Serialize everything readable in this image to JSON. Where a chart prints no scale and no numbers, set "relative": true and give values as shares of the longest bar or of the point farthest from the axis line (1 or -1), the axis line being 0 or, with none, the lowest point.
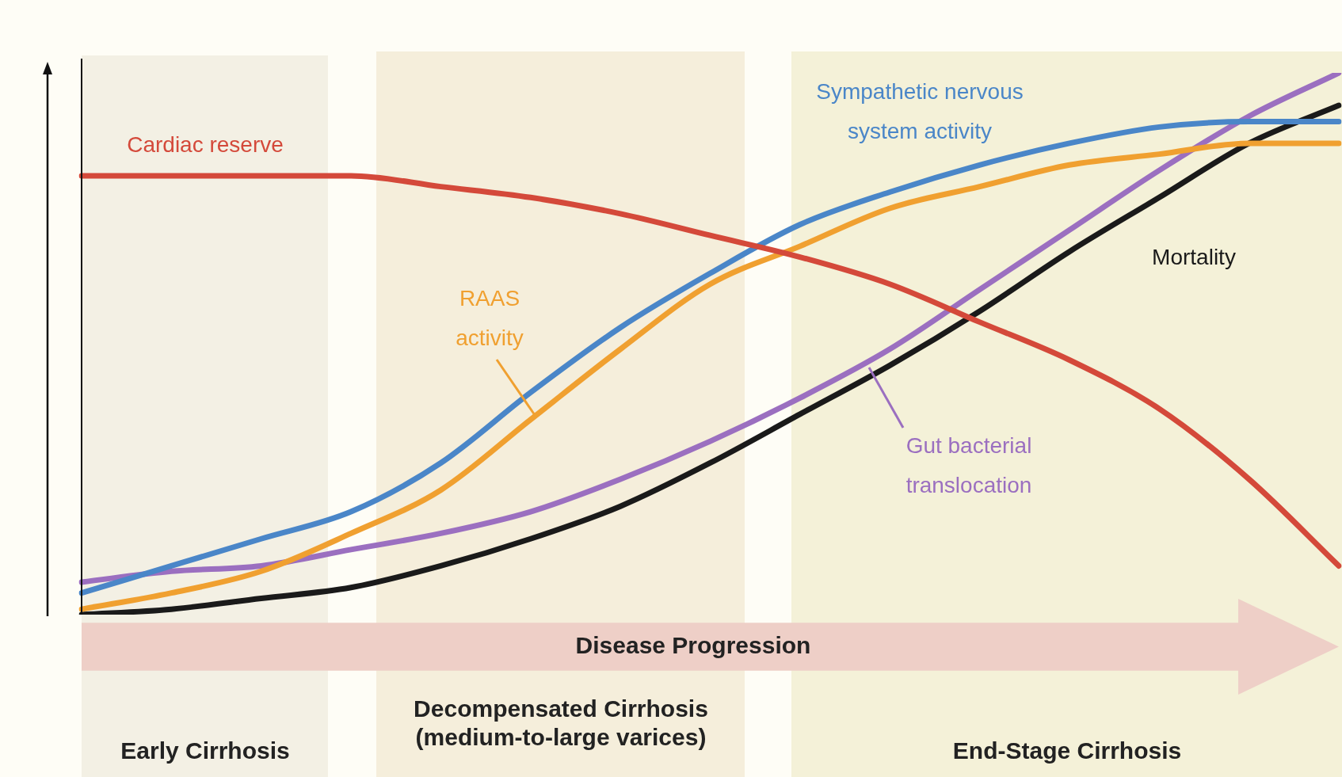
{
  "chart_data": {
    "type": "line",
    "relative": true,
    "legend": false,
    "categories": [
      null,
      null,
      null,
      null,
      null,
      null,
      null,
      null,
      null,
      null,
      null,
      null,
      null,
      null,
      null
    ],
    "series": [
      {
        "name": "Cardiac reserve",
        "color": "#d4493a",
        "values": [
          0.81,
          0.81,
          0.81,
          0.81,
          0.79,
          0.77,
          0.74,
          0.7,
          0.66,
          0.61,
          0.54,
          0.47,
          0.38,
          0.25,
          0.09
        ]
      },
      {
        "name": "Sympathetic nervous system activity",
        "color": "#4a86c8",
        "values": [
          0.04,
          0.09,
          0.14,
          0.19,
          0.28,
          0.41,
          0.53,
          0.63,
          0.72,
          0.78,
          0.83,
          0.87,
          0.9,
          0.91,
          0.91
        ]
      },
      {
        "name": "RAAS activity",
        "color": "#f0a030",
        "values": [
          0.01,
          0.04,
          0.08,
          0.15,
          0.23,
          0.36,
          0.49,
          0.61,
          0.68,
          0.75,
          0.79,
          0.83,
          0.85,
          0.87,
          0.87
        ]
      },
      {
        "name": "Gut bacterial translocation",
        "color": "#9b6fc0",
        "values": [
          0.06,
          0.08,
          0.09,
          0.12,
          0.15,
          0.19,
          0.25,
          0.32,
          0.4,
          0.49,
          0.6,
          0.71,
          0.82,
          0.92,
          1
        ]
      },
      {
        "name": "Mortality",
        "color": "#1a1a1a",
        "values": [
          0,
          0.01,
          0.03,
          0.05,
          0.09,
          0.14,
          0.2,
          0.28,
          0.37,
          0.46,
          0.56,
          0.67,
          0.77,
          0.87,
          0.94
        ]
      }
    ],
    "annotations": [
      "Disease Progression",
      "Early Cirrhosis",
      "Decompensated Cirrhosis (medium-to-large varices)",
      "End-Stage Cirrhosis"
    ]
  }
}
